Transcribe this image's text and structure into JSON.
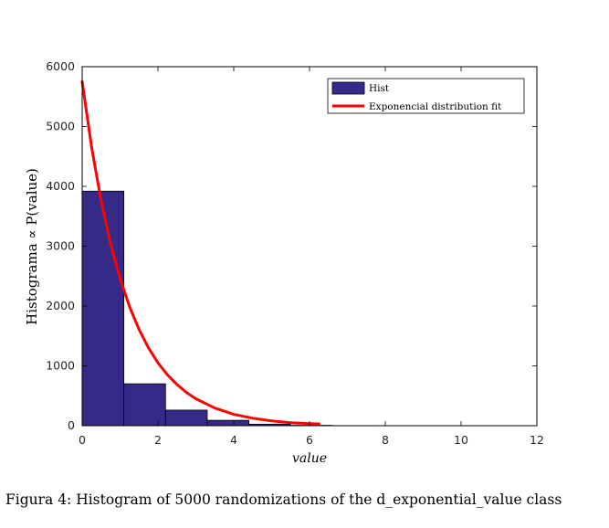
{
  "chart_data": {
    "type": "bar",
    "xlabel": "value",
    "ylabel": "Histograma ∝ P(value)",
    "xlim": [
      0,
      12
    ],
    "ylim": [
      0,
      6000
    ],
    "xticks": [
      "0",
      "2",
      "4",
      "6",
      "8",
      "10",
      "12"
    ],
    "yticks": [
      "0",
      "1000",
      "2000",
      "3000",
      "4000",
      "5000",
      "6000"
    ],
    "grid": false,
    "legend_position": "top-right",
    "colors": {
      "hist": "#352a87",
      "fit": "#ff0000"
    },
    "series": [
      {
        "name": "Hist",
        "type": "bar",
        "bins": [
          {
            "x0": 0.0,
            "x1": 1.1,
            "value": 3920
          },
          {
            "x0": 1.1,
            "x1": 2.2,
            "value": 700
          },
          {
            "x0": 2.2,
            "x1": 3.3,
            "value": 260
          },
          {
            "x0": 3.3,
            "x1": 4.4,
            "value": 90
          },
          {
            "x0": 4.4,
            "x1": 5.5,
            "value": 25
          },
          {
            "x0": 5.5,
            "x1": 6.6,
            "value": 6
          },
          {
            "x0": 6.6,
            "x1": 7.7,
            "value": 2
          },
          {
            "x0": 7.7,
            "x1": 8.8,
            "value": 1
          },
          {
            "x0": 8.8,
            "x1": 9.9,
            "value": 0
          },
          {
            "x0": 9.9,
            "x1": 11.0,
            "value": 1
          }
        ]
      },
      {
        "name": "Exponencial distribution fit",
        "type": "line",
        "x": [
          0,
          0.25,
          0.5,
          0.75,
          1.0,
          1.25,
          1.5,
          1.75,
          2.0,
          2.25,
          2.5,
          2.75,
          3.0,
          3.5,
          4.0,
          4.5,
          5.0,
          5.5,
          6.0,
          6.25
        ],
        "y": [
          5750,
          4650,
          3760,
          3040,
          2460,
          1990,
          1610,
          1300,
          1050,
          850,
          690,
          555,
          450,
          295,
          190,
          125,
          80,
          50,
          35,
          30
        ]
      }
    ]
  },
  "caption": "Figura 4: Histogram of 5000 randomizations of the d_exponential_value class"
}
